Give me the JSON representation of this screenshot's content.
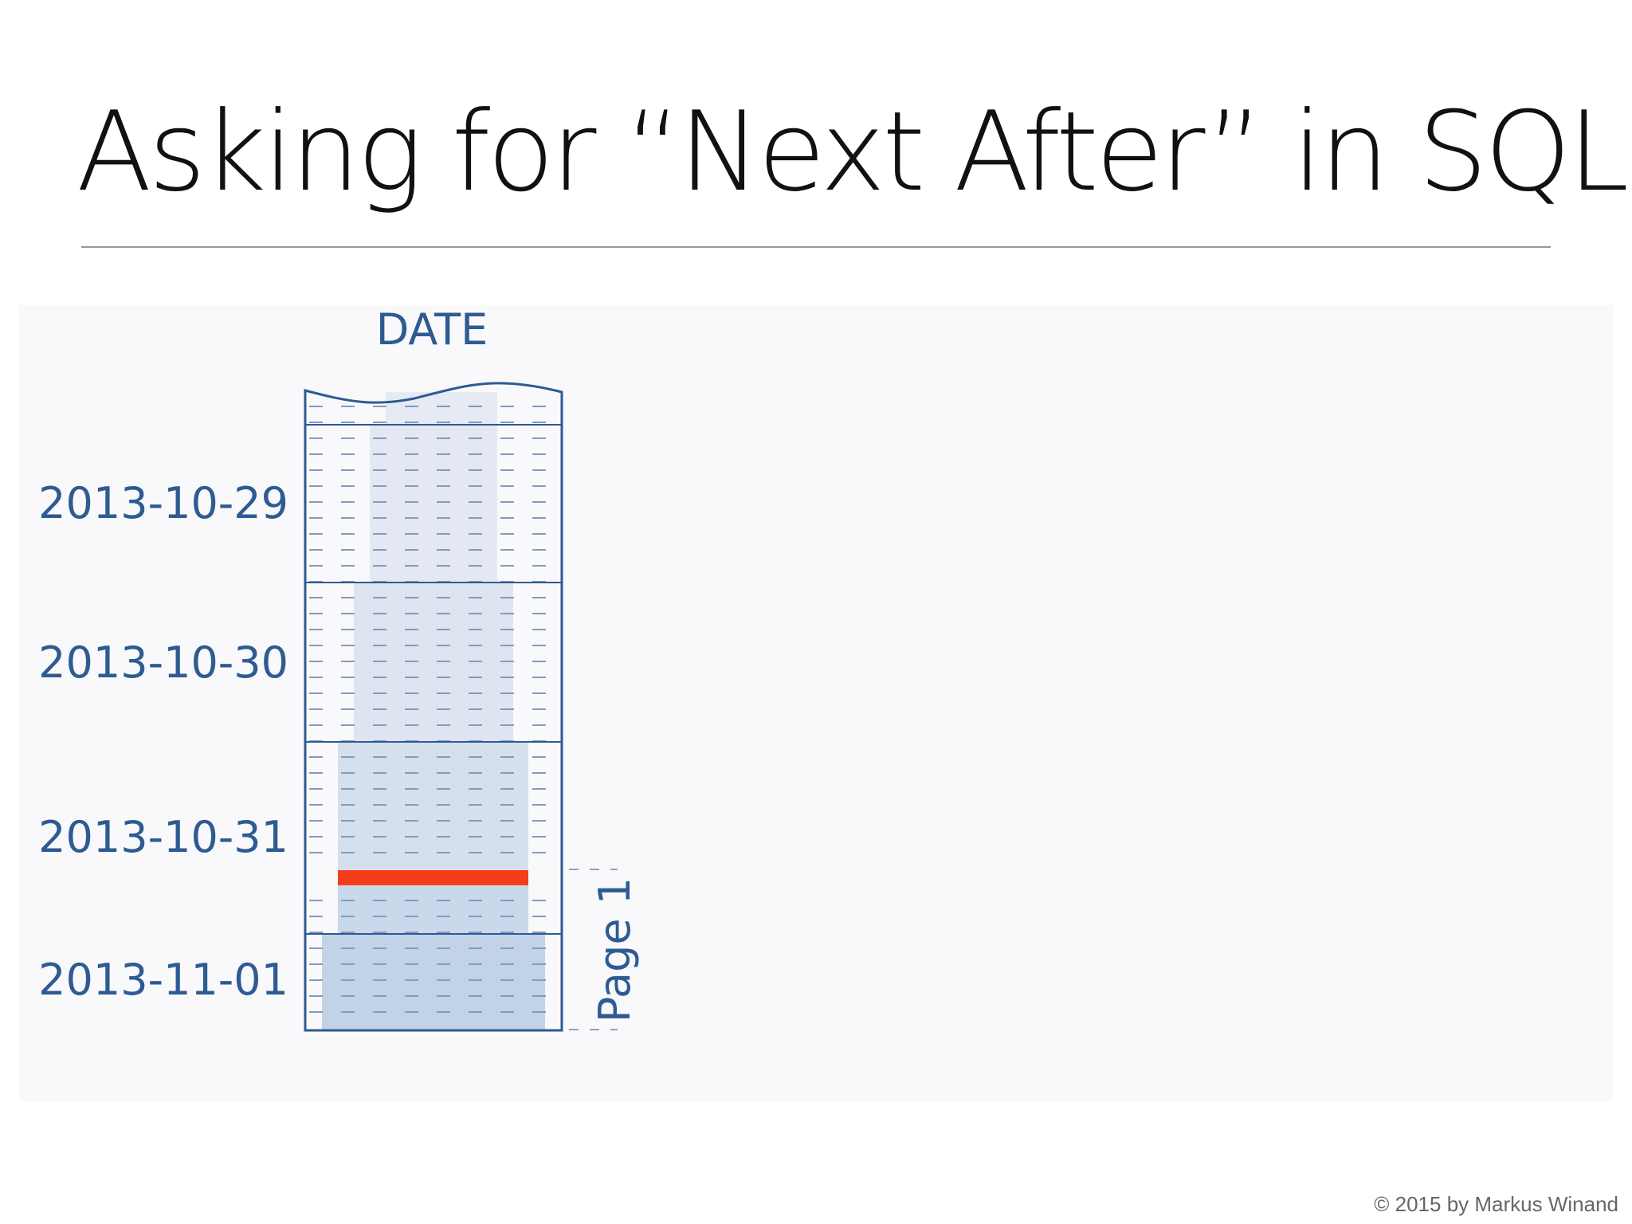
{
  "header": {
    "title": "Asking for “Next After” in SQL"
  },
  "diagram": {
    "column": "DATE",
    "rows": [
      "2013-10-29",
      "2013-10-30",
      "2013-10-31",
      "2013-11-01"
    ],
    "page_label": "Page 1"
  },
  "footer": {
    "copyright": "© 2015 by Markus Winand"
  }
}
